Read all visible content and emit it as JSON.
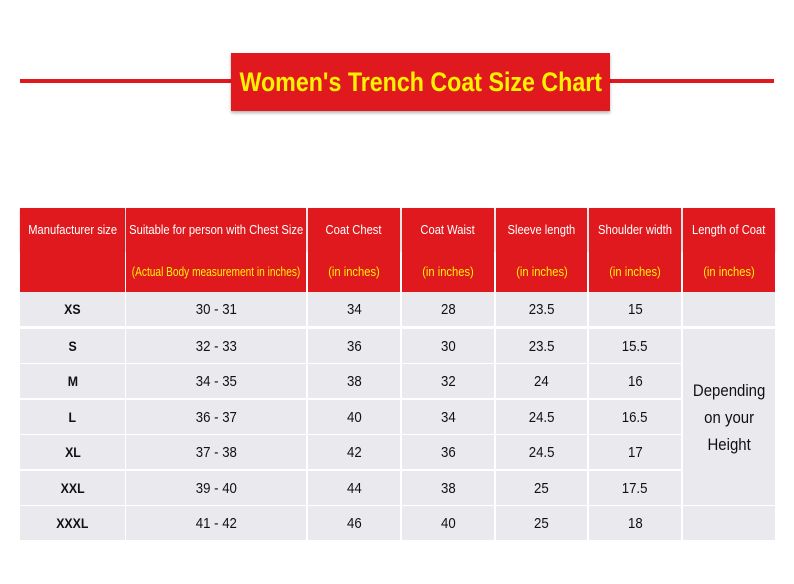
{
  "title": "Women's Trench Coat Size Chart",
  "headers": [
    "Manufacturer size",
    "Suitable for person with Chest Size",
    "Coat Chest",
    "Coat Waist",
    "Sleeve length",
    "Shoulder width",
    "Length of Coat"
  ],
  "subheaders": [
    "",
    "(Actual Body measurement in inches)",
    "(in inches)",
    "(in inches)",
    "(in inches)",
    "(in inches)",
    "(in inches)"
  ],
  "rows": [
    {
      "size": "XS",
      "chest_size": "30 - 31",
      "coat_chest": "34",
      "coat_waist": "28",
      "sleeve": "23.5",
      "shoulder": "15"
    },
    {
      "size": "S",
      "chest_size": "32 - 33",
      "coat_chest": "36",
      "coat_waist": "30",
      "sleeve": "23.5",
      "shoulder": "15.5"
    },
    {
      "size": "M",
      "chest_size": "34 - 35",
      "coat_chest": "38",
      "coat_waist": "32",
      "sleeve": "24",
      "shoulder": "16"
    },
    {
      "size": "L",
      "chest_size": "36 - 37",
      "coat_chest": "40",
      "coat_waist": "34",
      "sleeve": "24.5",
      "shoulder": "16.5"
    },
    {
      "size": "XL",
      "chest_size": "37 - 38",
      "coat_chest": "42",
      "coat_waist": "36",
      "sleeve": "24.5",
      "shoulder": "17"
    },
    {
      "size": "XXL",
      "chest_size": "39 - 40",
      "coat_chest": "44",
      "coat_waist": "38",
      "sleeve": "25",
      "shoulder": "17.5"
    },
    {
      "size": "XXXL",
      "chest_size": "41 - 42",
      "coat_chest": "46",
      "coat_waist": "40",
      "sleeve": "25",
      "shoulder": "18"
    }
  ],
  "length_of_coat_note": "Depending\non your\nHeight",
  "colors": {
    "accent": "#e0191e",
    "title_text": "#fff200",
    "row_bg": "#e9e9ee"
  }
}
